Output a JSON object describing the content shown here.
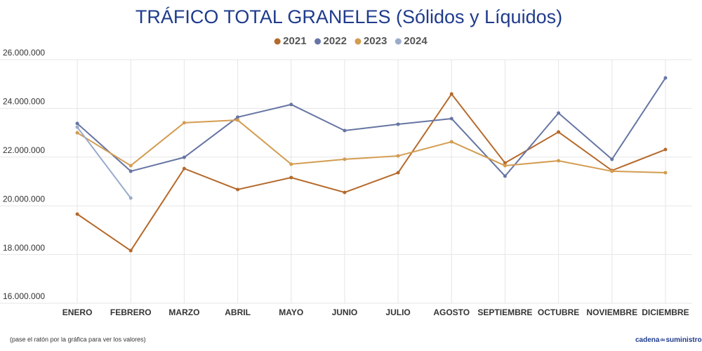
{
  "chart_data": {
    "type": "line",
    "title": "TRÁFICO TOTAL GRANELES (Sólidos y Líquidos)",
    "categories": [
      "ENERO",
      "FEBRERO",
      "MARZO",
      "ABRIL",
      "MAYO",
      "JUNIO",
      "JULIO",
      "AGOSTO",
      "SEPTIEMBRE",
      "OCTUBRE",
      "NOVIEMBRE",
      "DICIEMBRE"
    ],
    "series": [
      {
        "name": "2021",
        "color": "#b5692a",
        "values": [
          19660000,
          18160000,
          21530000,
          20670000,
          21160000,
          20550000,
          21360000,
          24590000,
          21760000,
          23030000,
          21450000,
          22310000
        ]
      },
      {
        "name": "2022",
        "color": "#6675a3",
        "values": [
          23380000,
          21420000,
          21990000,
          23640000,
          24160000,
          23090000,
          23350000,
          23580000,
          21220000,
          23810000,
          21910000,
          25250000
        ]
      },
      {
        "name": "2023",
        "color": "#d39c50",
        "values": [
          23000000,
          21650000,
          23410000,
          23520000,
          21710000,
          21910000,
          22050000,
          22630000,
          21650000,
          21850000,
          21420000,
          21360000
        ]
      },
      {
        "name": "2024",
        "color": "#9aabcc",
        "values": [
          23230000,
          20320000,
          null,
          null,
          null,
          null,
          null,
          null,
          null,
          null,
          null,
          null
        ]
      }
    ],
    "ylim": [
      16000000,
      26000000
    ],
    "yticks": [
      {
        "value": 16000000,
        "label": "16.000.000"
      },
      {
        "value": 18000000,
        "label": "18.000.000"
      },
      {
        "value": 20000000,
        "label": "20.000.000"
      },
      {
        "value": 22000000,
        "label": "22.000.000"
      },
      {
        "value": 24000000,
        "label": "24.000.000"
      },
      {
        "value": 26000000,
        "label": "26.000.000"
      }
    ],
    "grid": true,
    "legend": "top",
    "footnote": "(pase el ratón por la gráfica para ver los valores)",
    "logo": [
      "cadena",
      "de",
      "suministro"
    ]
  }
}
